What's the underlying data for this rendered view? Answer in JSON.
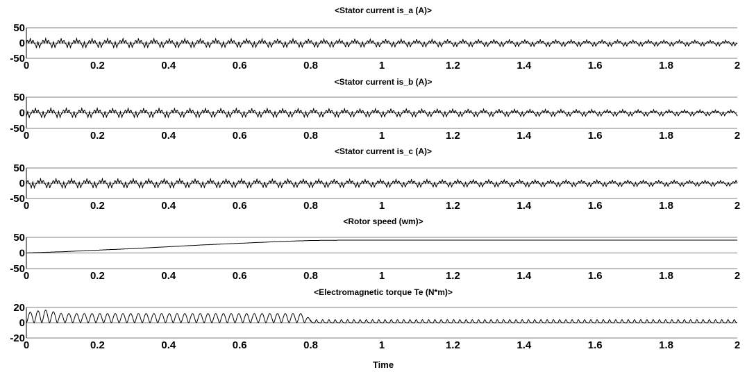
{
  "chart_data": [
    {
      "type": "line",
      "title": "<Stator current is_a (A)>",
      "xlabel": "",
      "ylabel": "",
      "xlim": [
        0,
        2
      ],
      "ylim": [
        -50,
        50
      ],
      "x_ticks": [
        0,
        0.2,
        0.4,
        0.6,
        0.8,
        1,
        1.2,
        1.4,
        1.6,
        1.8,
        2
      ],
      "y_ticks": [
        50,
        0,
        -50
      ],
      "grid": "horizontal",
      "series": [
        {
          "phase_deg": 0,
          "peak_envelope": [
            [
              0,
              18
            ],
            [
              0.8,
              16
            ],
            [
              2,
              11
            ]
          ],
          "x": [
            0,
            0.2,
            0.4,
            0.6,
            0.8,
            1,
            1.2,
            1.4,
            1.6,
            1.8,
            2
          ],
          "y": [
            0,
            10,
            -7,
            4,
            -9,
            2,
            -6,
            5,
            -4,
            3,
            -2
          ]
        }
      ]
    },
    {
      "type": "line",
      "title": "<Stator current is_b (A)>",
      "xlabel": "",
      "ylabel": "",
      "xlim": [
        0,
        2
      ],
      "ylim": [
        -50,
        50
      ],
      "x_ticks": [
        0,
        0.2,
        0.4,
        0.6,
        0.8,
        1,
        1.2,
        1.4,
        1.6,
        1.8,
        2
      ],
      "y_ticks": [
        50,
        0,
        -50
      ],
      "grid": "horizontal",
      "series": [
        {
          "phase_deg": 120,
          "peak_envelope": [
            [
              0,
              18
            ],
            [
              0.8,
              16
            ],
            [
              2,
              11
            ]
          ],
          "x": [
            0,
            0.2,
            0.4,
            0.6,
            0.8,
            1,
            1.2,
            1.4,
            1.6,
            1.8,
            2
          ],
          "y": [
            0,
            -10,
            8,
            -5,
            9,
            -3,
            6,
            -4,
            5,
            -3,
            2
          ]
        }
      ]
    },
    {
      "type": "line",
      "title": "<Stator current is_c (A)>",
      "xlabel": "",
      "ylabel": "",
      "xlim": [
        0,
        2
      ],
      "ylim": [
        -50,
        50
      ],
      "x_ticks": [
        0,
        0.2,
        0.4,
        0.6,
        0.8,
        1,
        1.2,
        1.4,
        1.6,
        1.8,
        2
      ],
      "y_ticks": [
        50,
        0,
        -50
      ],
      "grid": "horizontal",
      "series": [
        {
          "phase_deg": 240,
          "peak_envelope": [
            [
              0,
              18
            ],
            [
              0.8,
              16
            ],
            [
              2,
              11
            ]
          ],
          "x": [
            0,
            0.2,
            0.4,
            0.6,
            0.8,
            1,
            1.2,
            1.4,
            1.6,
            1.8,
            2
          ],
          "y": [
            0,
            7,
            -9,
            6,
            -5,
            4,
            -6,
            3,
            -5,
            2,
            4
          ]
        }
      ]
    },
    {
      "type": "line",
      "title": "<Rotor speed (wm)>",
      "xlabel": "",
      "ylabel": "",
      "xlim": [
        0,
        2
      ],
      "ylim": [
        -50,
        50
      ],
      "x_ticks": [
        0,
        0.2,
        0.4,
        0.6,
        0.8,
        1,
        1.2,
        1.4,
        1.6,
        1.8,
        2
      ],
      "y_ticks": [
        50,
        0,
        -50
      ],
      "grid": "horizontal",
      "series": [
        {
          "x": [
            0,
            0.1,
            0.2,
            0.3,
            0.4,
            0.5,
            0.6,
            0.7,
            0.8,
            0.9,
            1.0,
            1.2,
            1.4,
            1.6,
            1.8,
            2.0
          ],
          "y": [
            0,
            4,
            9,
            14,
            20,
            26,
            31,
            36,
            40,
            41,
            41,
            41,
            41,
            41,
            41,
            41
          ]
        }
      ]
    },
    {
      "type": "line",
      "title": "<Electromagnetic torque Te (N*m)>",
      "xlabel": "Time",
      "ylabel": "",
      "xlim": [
        0,
        2
      ],
      "ylim": [
        -20,
        20
      ],
      "x_ticks": [
        0,
        0.2,
        0.4,
        0.6,
        0.8,
        1,
        1.2,
        1.4,
        1.6,
        1.8,
        2
      ],
      "y_ticks": [
        20,
        0,
        -20
      ],
      "grid": "horizontal",
      "series": [
        {
          "pulse_envelope": [
            [
              0,
              13
            ],
            [
              0.05,
              17
            ],
            [
              0.1,
              12
            ],
            [
              0.78,
              12
            ],
            [
              0.8,
              4
            ],
            [
              2,
              4
            ]
          ],
          "x": [
            0,
            0.05,
            0.1,
            0.2,
            0.4,
            0.6,
            0.78,
            0.8,
            1,
            1.2,
            1.4,
            1.6,
            1.8,
            2
          ],
          "y": [
            0,
            17,
            12,
            13,
            13,
            13,
            12,
            4,
            4,
            4,
            4,
            4,
            4,
            4
          ]
        }
      ]
    }
  ]
}
